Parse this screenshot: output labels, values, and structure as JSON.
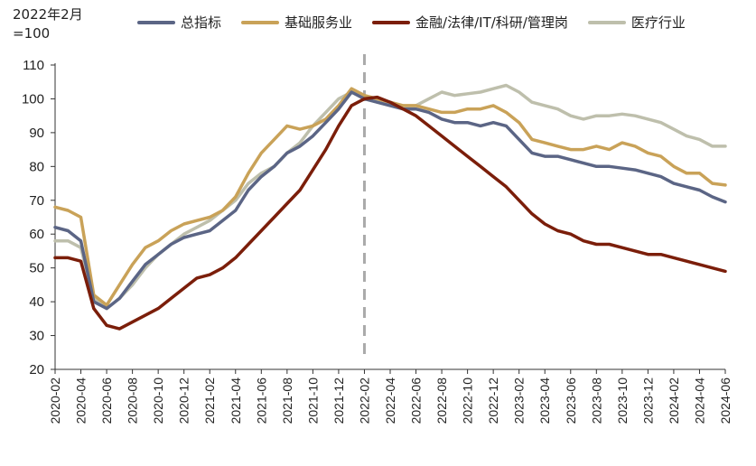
{
  "chart_data": {
    "type": "line",
    "unit_label_line1": "2022年2月",
    "unit_label_line2": "=100",
    "ylim": [
      20,
      110
    ],
    "yticks": [
      20,
      30,
      40,
      50,
      60,
      70,
      80,
      90,
      100,
      110
    ],
    "x_start": "2020-02",
    "x_end": "2024-06",
    "xticks": [
      "2020-02",
      "2020-04",
      "2020-06",
      "2020-08",
      "2020-10",
      "2020-12",
      "2021-02",
      "2021-04",
      "2021-06",
      "2021-08",
      "2021-10",
      "2021-12",
      "2022-02",
      "2022-04",
      "2022-06",
      "2022-08",
      "2022-10",
      "2022-12",
      "2023-02",
      "2023-04",
      "2023-06",
      "2023-08",
      "2023-10",
      "2023-12",
      "2024-02",
      "2024-04",
      "2024-06"
    ],
    "reference_line_x": "2022-02",
    "grid": false,
    "legend_position": "top",
    "series": [
      {
        "name": "总指标",
        "color": "#5B6585",
        "points": [
          [
            "2020-02",
            62
          ],
          [
            "2020-03",
            61
          ],
          [
            "2020-04",
            58
          ],
          [
            "2020-05",
            40
          ],
          [
            "2020-06",
            38
          ],
          [
            "2020-07",
            41
          ],
          [
            "2020-08",
            46
          ],
          [
            "2020-09",
            51
          ],
          [
            "2020-10",
            54
          ],
          [
            "2020-11",
            57
          ],
          [
            "2020-12",
            59
          ],
          [
            "2021-01",
            60
          ],
          [
            "2021-02",
            61
          ],
          [
            "2021-03",
            64
          ],
          [
            "2021-04",
            67
          ],
          [
            "2021-05",
            73
          ],
          [
            "2021-06",
            77
          ],
          [
            "2021-07",
            80
          ],
          [
            "2021-08",
            84
          ],
          [
            "2021-09",
            86
          ],
          [
            "2021-10",
            89
          ],
          [
            "2021-11",
            93
          ],
          [
            "2021-12",
            97
          ],
          [
            "2022-01",
            102
          ],
          [
            "2022-02",
            100
          ],
          [
            "2022-03",
            99
          ],
          [
            "2022-04",
            98
          ],
          [
            "2022-05",
            97
          ],
          [
            "2022-06",
            97
          ],
          [
            "2022-07",
            96
          ],
          [
            "2022-08",
            94
          ],
          [
            "2022-09",
            93
          ],
          [
            "2022-10",
            93
          ],
          [
            "2022-11",
            92
          ],
          [
            "2022-12",
            93
          ],
          [
            "2023-01",
            92
          ],
          [
            "2023-02",
            88
          ],
          [
            "2023-03",
            84
          ],
          [
            "2023-04",
            83
          ],
          [
            "2023-05",
            83
          ],
          [
            "2023-06",
            82
          ],
          [
            "2023-07",
            81
          ],
          [
            "2023-08",
            80
          ],
          [
            "2023-09",
            80
          ],
          [
            "2023-10",
            79.5
          ],
          [
            "2023-11",
            79
          ],
          [
            "2023-12",
            78
          ],
          [
            "2024-01",
            77
          ],
          [
            "2024-02",
            75
          ],
          [
            "2024-03",
            74
          ],
          [
            "2024-04",
            73
          ],
          [
            "2024-05",
            71
          ],
          [
            "2024-06",
            69.5
          ]
        ]
      },
      {
        "name": "基础服务业",
        "color": "#C9A258",
        "points": [
          [
            "2020-02",
            68
          ],
          [
            "2020-03",
            67
          ],
          [
            "2020-04",
            65
          ],
          [
            "2020-05",
            42
          ],
          [
            "2020-06",
            39
          ],
          [
            "2020-07",
            45
          ],
          [
            "2020-08",
            51
          ],
          [
            "2020-09",
            56
          ],
          [
            "2020-10",
            58
          ],
          [
            "2020-11",
            61
          ],
          [
            "2020-12",
            63
          ],
          [
            "2021-01",
            64
          ],
          [
            "2021-02",
            65
          ],
          [
            "2021-03",
            67
          ],
          [
            "2021-04",
            71
          ],
          [
            "2021-05",
            78
          ],
          [
            "2021-06",
            84
          ],
          [
            "2021-07",
            88
          ],
          [
            "2021-08",
            92
          ],
          [
            "2021-09",
            91
          ],
          [
            "2021-10",
            92
          ],
          [
            "2021-11",
            94
          ],
          [
            "2021-12",
            98
          ],
          [
            "2022-01",
            103
          ],
          [
            "2022-02",
            101
          ],
          [
            "2022-03",
            100
          ],
          [
            "2022-04",
            99
          ],
          [
            "2022-05",
            98
          ],
          [
            "2022-06",
            98
          ],
          [
            "2022-07",
            97
          ],
          [
            "2022-08",
            96
          ],
          [
            "2022-09",
            96
          ],
          [
            "2022-10",
            97
          ],
          [
            "2022-11",
            97
          ],
          [
            "2022-12",
            98
          ],
          [
            "2023-01",
            96
          ],
          [
            "2023-02",
            93
          ],
          [
            "2023-03",
            88
          ],
          [
            "2023-04",
            87
          ],
          [
            "2023-05",
            86
          ],
          [
            "2023-06",
            85
          ],
          [
            "2023-07",
            85
          ],
          [
            "2023-08",
            86
          ],
          [
            "2023-09",
            85
          ],
          [
            "2023-10",
            87
          ],
          [
            "2023-11",
            86
          ],
          [
            "2023-12",
            84
          ],
          [
            "2024-01",
            83
          ],
          [
            "2024-02",
            80
          ],
          [
            "2024-03",
            78
          ],
          [
            "2024-04",
            78
          ],
          [
            "2024-05",
            75
          ],
          [
            "2024-06",
            74.5
          ]
        ]
      },
      {
        "name": "金融/法律/IT/科研/管理岗",
        "color": "#7B1E0A",
        "points": [
          [
            "2020-02",
            53
          ],
          [
            "2020-03",
            53
          ],
          [
            "2020-04",
            52
          ],
          [
            "2020-05",
            38
          ],
          [
            "2020-06",
            33
          ],
          [
            "2020-07",
            32
          ],
          [
            "2020-08",
            34
          ],
          [
            "2020-09",
            36
          ],
          [
            "2020-10",
            38
          ],
          [
            "2020-11",
            41
          ],
          [
            "2020-12",
            44
          ],
          [
            "2021-01",
            47
          ],
          [
            "2021-02",
            48
          ],
          [
            "2021-03",
            50
          ],
          [
            "2021-04",
            53
          ],
          [
            "2021-05",
            57
          ],
          [
            "2021-06",
            61
          ],
          [
            "2021-07",
            65
          ],
          [
            "2021-08",
            69
          ],
          [
            "2021-09",
            73
          ],
          [
            "2021-10",
            79
          ],
          [
            "2021-11",
            85
          ],
          [
            "2021-12",
            92
          ],
          [
            "2022-01",
            98
          ],
          [
            "2022-02",
            100
          ],
          [
            "2022-03",
            100.5
          ],
          [
            "2022-04",
            99
          ],
          [
            "2022-05",
            97
          ],
          [
            "2022-06",
            95
          ],
          [
            "2022-07",
            92
          ],
          [
            "2022-08",
            89
          ],
          [
            "2022-09",
            86
          ],
          [
            "2022-10",
            83
          ],
          [
            "2022-11",
            80
          ],
          [
            "2022-12",
            77
          ],
          [
            "2023-01",
            74
          ],
          [
            "2023-02",
            70
          ],
          [
            "2023-03",
            66
          ],
          [
            "2023-04",
            63
          ],
          [
            "2023-05",
            61
          ],
          [
            "2023-06",
            60
          ],
          [
            "2023-07",
            58
          ],
          [
            "2023-08",
            57
          ],
          [
            "2023-09",
            57
          ],
          [
            "2023-10",
            56
          ],
          [
            "2023-11",
            55
          ],
          [
            "2023-12",
            54
          ],
          [
            "2024-01",
            54
          ],
          [
            "2024-02",
            53
          ],
          [
            "2024-03",
            52
          ],
          [
            "2024-04",
            51
          ],
          [
            "2024-05",
            50
          ],
          [
            "2024-06",
            49
          ]
        ]
      },
      {
        "name": "医疗行业",
        "color": "#BEBFAC",
        "points": [
          [
            "2020-02",
            58
          ],
          [
            "2020-03",
            58
          ],
          [
            "2020-04",
            56
          ],
          [
            "2020-05",
            41
          ],
          [
            "2020-06",
            38
          ],
          [
            "2020-07",
            41
          ],
          [
            "2020-08",
            45
          ],
          [
            "2020-09",
            50
          ],
          [
            "2020-10",
            54
          ],
          [
            "2020-11",
            57
          ],
          [
            "2020-12",
            60
          ],
          [
            "2021-01",
            62
          ],
          [
            "2021-02",
            64
          ],
          [
            "2021-03",
            67
          ],
          [
            "2021-04",
            70
          ],
          [
            "2021-05",
            75
          ],
          [
            "2021-06",
            78
          ],
          [
            "2021-07",
            80
          ],
          [
            "2021-08",
            84
          ],
          [
            "2021-09",
            87
          ],
          [
            "2021-10",
            92
          ],
          [
            "2021-11",
            96
          ],
          [
            "2021-12",
            100
          ],
          [
            "2022-01",
            102
          ],
          [
            "2022-02",
            100
          ],
          [
            "2022-03",
            99
          ],
          [
            "2022-04",
            98
          ],
          [
            "2022-05",
            97
          ],
          [
            "2022-06",
            98
          ],
          [
            "2022-07",
            100
          ],
          [
            "2022-08",
            102
          ],
          [
            "2022-09",
            101
          ],
          [
            "2022-10",
            101.5
          ],
          [
            "2022-11",
            102
          ],
          [
            "2022-12",
            103
          ],
          [
            "2023-01",
            104
          ],
          [
            "2023-02",
            102
          ],
          [
            "2023-03",
            99
          ],
          [
            "2023-04",
            98
          ],
          [
            "2023-05",
            97
          ],
          [
            "2023-06",
            95
          ],
          [
            "2023-07",
            94
          ],
          [
            "2023-08",
            95
          ],
          [
            "2023-09",
            95
          ],
          [
            "2023-10",
            95.5
          ],
          [
            "2023-11",
            95
          ],
          [
            "2023-12",
            94
          ],
          [
            "2024-01",
            93
          ],
          [
            "2024-02",
            91
          ],
          [
            "2024-03",
            89
          ],
          [
            "2024-04",
            88
          ],
          [
            "2024-05",
            86
          ],
          [
            "2024-06",
            86
          ]
        ]
      }
    ]
  }
}
